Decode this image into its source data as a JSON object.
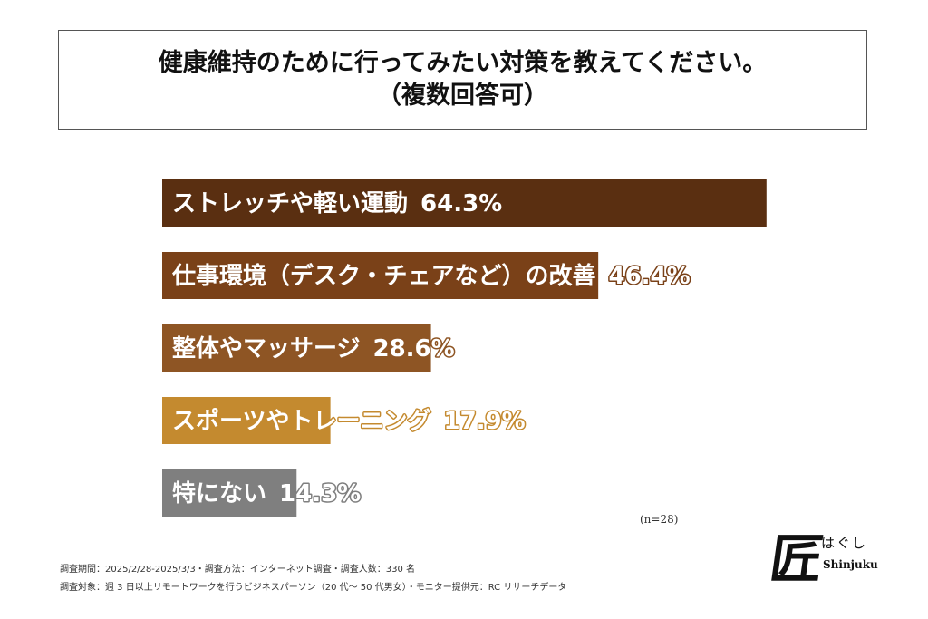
{
  "chart_data": {
    "type": "bar",
    "orientation": "horizontal",
    "title": "健康維持のために行ってみたい対策を教えてください。",
    "subtitle": "（複数回答可）",
    "categories": [
      "ストレッチや軽い運動",
      "仕事環境（デスク・チェアなど）の改善",
      "整体やマッサージ",
      "スポーツやトレーニング",
      "特にない"
    ],
    "values": [
      64.3,
      46.4,
      28.6,
      17.9,
      14.3
    ],
    "value_labels": [
      "64.3%",
      "46.4%",
      "28.6%",
      "17.9%",
      "14.3%"
    ],
    "colors": [
      "#5a2f11",
      "#7a4118",
      "#8e5524",
      "#c48a2f",
      "#7f7f7f"
    ],
    "xlim": [
      0,
      100
    ],
    "xlabel": "",
    "ylabel": "",
    "grid": false,
    "legend": "none"
  },
  "sample_note": "(n=28)",
  "footer": {
    "line1": "調査期間：2025/2/28-2025/3/3・調査方法：インターネット調査・調査人数：330 名",
    "line2": "調査対象：週 3 日以上リモートワークを行うビジネスパーソン（20 代〜 50 代男女）・モニター提供元：RC リサーチデータ"
  },
  "logo": {
    "mark": "匠",
    "kana": "はぐし",
    "latin": "Shinjuku"
  }
}
